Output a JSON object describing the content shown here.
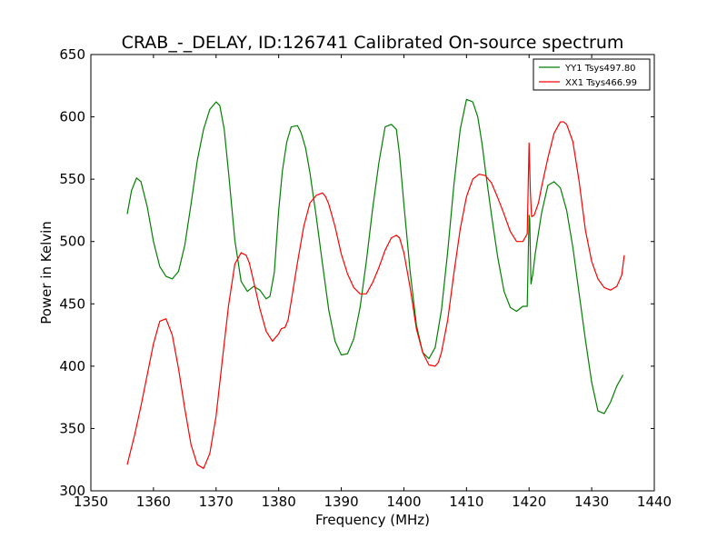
{
  "chart_data": {
    "type": "line",
    "title": "CRAB_-_DELAY, ID:126741 Calibrated On-source spectrum",
    "xlabel": "Frequency (MHz)",
    "ylabel": "Power in Kelvin",
    "xlim": [
      1350,
      1440
    ],
    "ylim": [
      300,
      650
    ],
    "xticks": [
      1350,
      1360,
      1370,
      1380,
      1390,
      1400,
      1410,
      1420,
      1430,
      1440
    ],
    "yticks": [
      300,
      350,
      400,
      450,
      500,
      550,
      600,
      650
    ],
    "grid": false,
    "legend_position": "top-right",
    "series": [
      {
        "name": "YY1 Tsys497.80",
        "color": "#008000",
        "x": [
          1355.8,
          1356.5,
          1357.3,
          1358.0,
          1359.0,
          1360.0,
          1361.0,
          1362.0,
          1363.0,
          1364.0,
          1365.0,
          1366.0,
          1367.0,
          1368.0,
          1369.0,
          1370.0,
          1370.6,
          1371.3,
          1372.0,
          1373.0,
          1374.0,
          1375.0,
          1376.0,
          1377.0,
          1378.0,
          1378.6,
          1379.3,
          1380.0,
          1380.6,
          1381.3,
          1382.0,
          1383.0,
          1383.6,
          1384.3,
          1385.0,
          1386.0,
          1387.0,
          1388.0,
          1389.0,
          1390.0,
          1391.0,
          1392.0,
          1393.0,
          1394.0,
          1395.0,
          1396.0,
          1397.0,
          1398.0,
          1398.8,
          1399.3,
          1400.0,
          1401.0,
          1402.0,
          1403.0,
          1404.0,
          1405.0,
          1406.0,
          1407.0,
          1408.0,
          1409.0,
          1410.0,
          1411.0,
          1411.8,
          1412.5,
          1413.0,
          1414.0,
          1415.0,
          1416.0,
          1417.0,
          1418.0,
          1419.0,
          1419.7,
          1420.0,
          1420.1,
          1420.3,
          1420.6,
          1421.0,
          1422.0,
          1423.0,
          1424.0,
          1425.0,
          1426.0,
          1427.0,
          1428.0,
          1429.0,
          1430.0,
          1431.0,
          1432.0,
          1433.0,
          1434.0,
          1435.0
        ],
        "values": [
          522,
          541,
          551,
          548,
          528,
          500,
          480,
          472,
          470,
          476,
          497,
          530,
          565,
          590,
          606,
          612,
          609,
          590,
          555,
          501,
          468,
          460,
          464,
          461,
          454,
          456,
          475,
          525,
          557,
          580,
          592,
          593,
          587,
          575,
          555,
          520,
          482,
          445,
          420,
          409,
          410,
          422,
          447,
          484,
          526,
          563,
          592,
          594,
          590,
          570,
          530,
          476,
          433,
          411,
          406,
          415,
          445,
          492,
          546,
          590,
          614,
          612,
          600,
          578,
          558,
          521,
          487,
          460,
          447,
          444,
          448,
          448,
          521,
          518,
          466,
          474,
          491,
          523,
          545,
          548,
          543,
          525,
          495,
          458,
          421,
          387,
          364,
          362,
          371,
          384,
          393
        ]
      },
      {
        "name": "XX1 Tsys466.99",
        "color": "#ff0000",
        "x": [
          1355.8,
          1357.0,
          1358.0,
          1359.0,
          1360.0,
          1361.0,
          1362.0,
          1363.0,
          1364.0,
          1365.0,
          1366.0,
          1367.0,
          1368.0,
          1369.0,
          1370.0,
          1371.0,
          1372.0,
          1373.0,
          1374.0,
          1374.8,
          1375.3,
          1376.0,
          1377.0,
          1378.0,
          1379.0,
          1380.0,
          1380.4,
          1381.0,
          1381.5,
          1382.0,
          1383.0,
          1384.0,
          1385.0,
          1386.0,
          1387.0,
          1387.5,
          1388.0,
          1389.0,
          1390.0,
          1391.0,
          1392.0,
          1393.0,
          1394.0,
          1395.0,
          1396.0,
          1397.0,
          1398.0,
          1398.8,
          1399.3,
          1400.0,
          1401.0,
          1402.0,
          1403.0,
          1404.0,
          1405.0,
          1405.5,
          1406.0,
          1407.0,
          1408.0,
          1409.0,
          1410.0,
          1411.0,
          1412.0,
          1413.0,
          1414.0,
          1415.0,
          1416.0,
          1417.0,
          1418.0,
          1419.0,
          1419.7,
          1420.0,
          1420.2,
          1420.4,
          1420.8,
          1421.5,
          1422.0,
          1423.0,
          1424.0,
          1425.0,
          1425.5,
          1426.0,
          1427.0,
          1428.0,
          1429.0,
          1430.0,
          1431.0,
          1432.0,
          1433.0,
          1434.0,
          1434.8,
          1435.2
        ],
        "values": [
          321,
          345,
          368,
          393,
          418,
          436,
          438,
          425,
          398,
          366,
          337,
          321,
          318,
          330,
          360,
          405,
          449,
          482,
          491,
          489,
          483,
          468,
          446,
          428,
          420,
          426,
          430,
          431,
          437,
          452,
          483,
          512,
          531,
          537,
          539,
          536,
          530,
          512,
          490,
          474,
          463,
          458,
          458,
          467,
          479,
          493,
          503,
          505,
          503,
          491,
          463,
          430,
          411,
          401,
          400,
          403,
          411,
          437,
          475,
          510,
          536,
          550,
          554,
          553,
          547,
          535,
          522,
          508,
          500,
          500,
          506,
          579,
          540,
          520,
          521,
          531,
          544,
          567,
          587,
          596,
          596,
          594,
          580,
          548,
          509,
          484,
          470,
          463,
          461,
          464,
          473,
          489
        ]
      }
    ]
  }
}
